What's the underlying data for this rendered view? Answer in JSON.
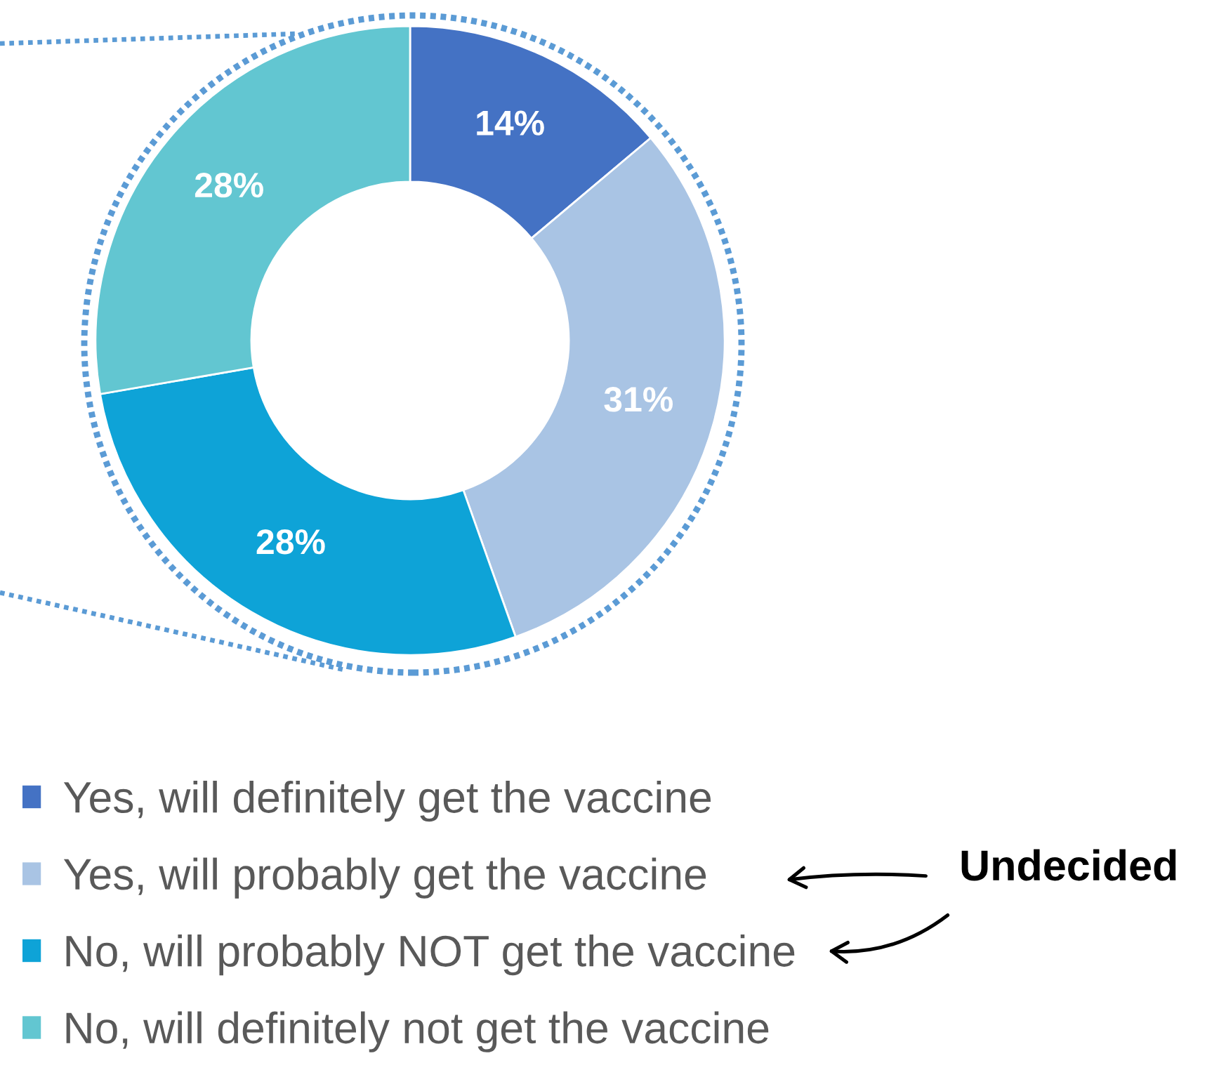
{
  "chart_data": {
    "type": "donut",
    "categories": [
      "Yes, will definitely get the vaccine",
      "Yes, will probably get the vaccine",
      "No, will probably NOT get the vaccine",
      "No, will definitely not get the vaccine"
    ],
    "values": [
      14,
      31,
      28,
      28
    ],
    "colors": [
      "#4472c4",
      "#a9c4e4",
      "#0ea3d7",
      "#62c6d1"
    ],
    "value_labels": [
      "14%",
      "31%",
      "28%",
      "28%"
    ],
    "legend": "bottom left",
    "annotations": [
      "Undecided"
    ]
  }
}
